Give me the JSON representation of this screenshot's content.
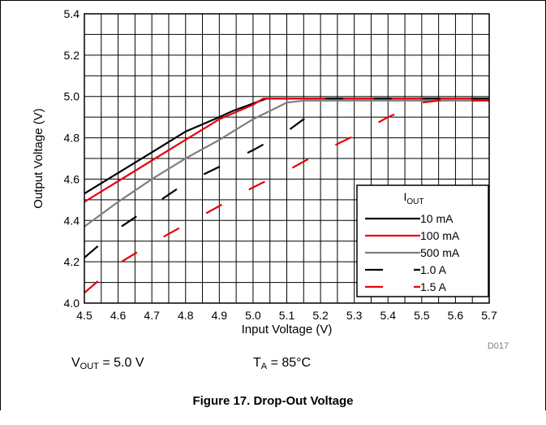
{
  "chart_data": {
    "type": "line",
    "xlabel": "Input Voltage (V)",
    "ylabel": "Output Voltage (V)",
    "xlim": [
      4.5,
      5.7
    ],
    "ylim": [
      4.0,
      5.4
    ],
    "xticks": [
      "4.5",
      "4.6",
      "4.7",
      "4.8",
      "4.9",
      "5.0",
      "5.1",
      "5.2",
      "5.3",
      "5.4",
      "5.5",
      "5.6",
      "5.7"
    ],
    "yticks": [
      "4.0",
      "4.2",
      "4.4",
      "4.6",
      "4.8",
      "5.0",
      "5.2",
      "5.4"
    ],
    "grid": true,
    "legend_placement": "bottom-right",
    "legend_title": {
      "main": "I",
      "sub": "OUT"
    },
    "series": [
      {
        "name": "10 mA",
        "color": "#000000",
        "dash": "solid",
        "x": [
          4.5,
          4.6,
          4.7,
          4.8,
          4.9,
          4.94,
          5.04,
          5.7
        ],
        "y": [
          4.53,
          4.63,
          4.73,
          4.83,
          4.9,
          4.93,
          4.99,
          4.99
        ]
      },
      {
        "name": "100 mA",
        "color": "#e8000b",
        "dash": "solid",
        "x": [
          4.5,
          4.6,
          4.7,
          4.8,
          4.9,
          5.0,
          5.03,
          5.7
        ],
        "y": [
          4.49,
          4.59,
          4.69,
          4.79,
          4.89,
          4.96,
          4.99,
          4.99
        ]
      },
      {
        "name": "500 mA",
        "color": "#7f7f7f",
        "dash": "solid",
        "x": [
          4.5,
          4.6,
          4.7,
          4.8,
          4.9,
          5.0,
          5.1,
          5.15,
          5.7
        ],
        "y": [
          4.37,
          4.49,
          4.6,
          4.7,
          4.79,
          4.89,
          4.97,
          4.98,
          4.98
        ]
      },
      {
        "name": "1.0 A",
        "color": "#000000",
        "dash": "long",
        "x": [
          4.5,
          4.6,
          4.7,
          4.8,
          4.9,
          5.0,
          5.1,
          5.15,
          5.18,
          5.2,
          5.7
        ],
        "y": [
          4.22,
          4.36,
          4.47,
          4.58,
          4.66,
          4.74,
          4.83,
          4.89,
          4.93,
          4.99,
          4.99
        ]
      },
      {
        "name": "1.5 A",
        "color": "#e8000b",
        "dash": "long",
        "x": [
          4.5,
          4.6,
          4.7,
          4.8,
          4.9,
          5.0,
          5.1,
          5.2,
          5.3,
          5.4,
          5.5,
          5.55,
          5.7
        ],
        "y": [
          4.05,
          4.19,
          4.29,
          4.38,
          4.47,
          4.56,
          4.64,
          4.73,
          4.81,
          4.9,
          4.97,
          4.98,
          4.98
        ]
      }
    ]
  },
  "figure_id": "D017",
  "conditions": {
    "vout_main": "V",
    "vout_sub": "OUT",
    "vout_value": " = 5.0 V",
    "ta_main": "T",
    "ta_sub": "A",
    "ta_value": " = 85°C"
  },
  "caption": "Figure 17. Drop-Out Voltage"
}
